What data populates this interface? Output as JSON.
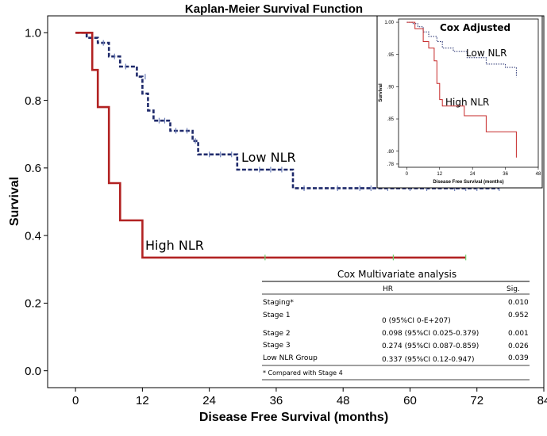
{
  "chart_data": [
    {
      "type": "line",
      "title": "Kaplan-Meier Survival Function",
      "xlabel": "Disease Free Survival (months)",
      "ylabel": "Survival",
      "xlim": [
        -5,
        84
      ],
      "ylim": [
        -0.05,
        1.05
      ],
      "xticks": [
        "0",
        "12",
        "24",
        "36",
        "48",
        "60",
        "72",
        "84"
      ],
      "yticks": [
        "0.0",
        "0.2",
        "0.4",
        "0.6",
        "0.8",
        "1.0"
      ],
      "grid": false,
      "series": [
        {
          "name": "Low NLR",
          "color": "#1f2a6b",
          "style": "dashed",
          "steps": [
            [
              0,
              1.0
            ],
            [
              2,
              1.0
            ],
            [
              2,
              0.985
            ],
            [
              4,
              0.985
            ],
            [
              4,
              0.97
            ],
            [
              6,
              0.97
            ],
            [
              6,
              0.93
            ],
            [
              8,
              0.93
            ],
            [
              8,
              0.9
            ],
            [
              11,
              0.9
            ],
            [
              11,
              0.87
            ],
            [
              12,
              0.87
            ],
            [
              12,
              0.82
            ],
            [
              13,
              0.82
            ],
            [
              13,
              0.77
            ],
            [
              14,
              0.77
            ],
            [
              14,
              0.74
            ],
            [
              17,
              0.74
            ],
            [
              17,
              0.71
            ],
            [
              21,
              0.71
            ],
            [
              21,
              0.68
            ],
            [
              22,
              0.68
            ],
            [
              22,
              0.64
            ],
            [
              29,
              0.64
            ],
            [
              29,
              0.595
            ],
            [
              39,
              0.595
            ],
            [
              39,
              0.54
            ],
            [
              76,
              0.54
            ]
          ],
          "censored": [
            [
              3,
              0.985
            ],
            [
              5,
              0.97
            ],
            [
              7,
              0.93
            ],
            [
              9,
              0.9
            ],
            [
              12.5,
              0.87
            ],
            [
              15,
              0.74
            ],
            [
              16,
              0.74
            ],
            [
              18,
              0.71
            ],
            [
              20,
              0.71
            ],
            [
              21.5,
              0.68
            ],
            [
              24,
              0.64
            ],
            [
              26,
              0.64
            ],
            [
              28,
              0.64
            ],
            [
              33,
              0.595
            ],
            [
              35,
              0.595
            ],
            [
              37,
              0.595
            ],
            [
              41,
              0.54
            ],
            [
              47,
              0.54
            ],
            [
              51,
              0.54
            ],
            [
              53,
              0.54
            ],
            [
              56,
              0.54
            ],
            [
              60,
              0.54
            ],
            [
              63,
              0.54
            ],
            [
              68,
              0.54
            ],
            [
              70,
              0.54
            ],
            [
              72,
              0.54
            ],
            [
              76,
              0.54
            ]
          ]
        },
        {
          "name": "High NLR",
          "color": "#b22222",
          "style": "solid",
          "steps": [
            [
              0,
              1.0
            ],
            [
              3,
              1.0
            ],
            [
              3,
              0.89
            ],
            [
              4,
              0.89
            ],
            [
              4,
              0.78
            ],
            [
              6,
              0.78
            ],
            [
              6,
              0.555
            ],
            [
              8,
              0.555
            ],
            [
              8,
              0.445
            ],
            [
              12,
              0.445
            ],
            [
              12,
              0.335
            ],
            [
              70,
              0.335
            ]
          ],
          "censored": [
            [
              34,
              0.335
            ],
            [
              57,
              0.335
            ],
            [
              70,
              0.335
            ]
          ]
        }
      ]
    },
    {
      "type": "line",
      "title": "Cox Adjusted",
      "xlabel": "Disease Free Survival (months)",
      "ylabel": "Survival",
      "xlim": [
        -3,
        48
      ],
      "ylim": [
        0.775,
        1.005
      ],
      "xticks": [
        "0",
        "12",
        "24",
        "36",
        "48"
      ],
      "yticks": [
        ".78",
        ".80",
        ".85",
        ".90",
        ".95",
        "1.00"
      ],
      "series": [
        {
          "name": "Low NLR",
          "color": "#1f2a6b",
          "style": "dotted",
          "steps": [
            [
              0,
              1.0
            ],
            [
              2,
              1.0
            ],
            [
              2,
              0.998
            ],
            [
              4,
              0.998
            ],
            [
              4,
              0.993
            ],
            [
              6,
              0.993
            ],
            [
              6,
              0.985
            ],
            [
              8,
              0.985
            ],
            [
              8,
              0.978
            ],
            [
              11,
              0.978
            ],
            [
              11,
              0.97
            ],
            [
              13,
              0.97
            ],
            [
              13,
              0.96
            ],
            [
              17,
              0.96
            ],
            [
              17,
              0.955
            ],
            [
              22,
              0.955
            ],
            [
              22,
              0.945
            ],
            [
              29,
              0.945
            ],
            [
              29,
              0.935
            ],
            [
              36,
              0.935
            ],
            [
              36,
              0.93
            ],
            [
              40,
              0.93
            ],
            [
              40,
              0.915
            ]
          ]
        },
        {
          "name": "High NLR",
          "color": "#c62828",
          "style": "solid",
          "steps": [
            [
              0,
              1.0
            ],
            [
              3,
              1.0
            ],
            [
              3,
              0.99
            ],
            [
              6,
              0.99
            ],
            [
              6,
              0.97
            ],
            [
              8,
              0.97
            ],
            [
              8,
              0.96
            ],
            [
              10,
              0.96
            ],
            [
              10,
              0.94
            ],
            [
              11,
              0.94
            ],
            [
              11,
              0.905
            ],
            [
              12,
              0.905
            ],
            [
              12,
              0.88
            ],
            [
              13,
              0.88
            ],
            [
              13,
              0.87
            ],
            [
              21,
              0.87
            ],
            [
              21,
              0.855
            ],
            [
              29,
              0.855
            ],
            [
              29,
              0.83
            ],
            [
              40,
              0.83
            ],
            [
              40,
              0.79
            ]
          ]
        }
      ]
    },
    {
      "type": "table",
      "title": "Cox Multivariate analysis",
      "columns": [
        "",
        "HR",
        "Sig."
      ],
      "rows": [
        [
          "Staging*",
          "",
          "0.010"
        ],
        [
          "Stage 1",
          "0 (95%CI 0-E+207)",
          "0.952"
        ],
        [
          "Stage 2",
          "0.098 (95%CI 0.025-0.379)",
          "0.001"
        ],
        [
          "Stage 3",
          "0.274 (95%CI 0.087-0.859)",
          "0.026"
        ],
        [
          "Low NLR Group",
          "0.337 (95%CI 0.12-0.947)",
          "0.039"
        ]
      ],
      "footnote": "* Compared with Stage 4"
    }
  ]
}
